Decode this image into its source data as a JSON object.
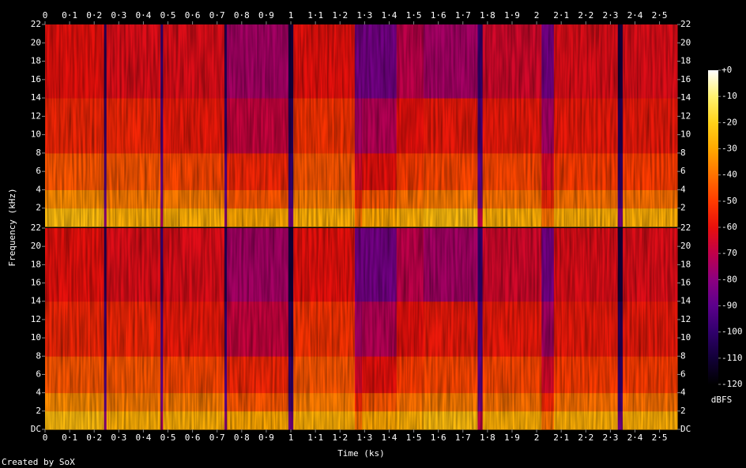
{
  "chart_data": {
    "type": "spectrogram",
    "x_label": "Time (ks)",
    "y_label": "Frequency (kHz)",
    "footer": "Created by SoX",
    "xlim": [
      0,
      2.572
    ],
    "xticks": [
      0,
      {
        "value": 0.1,
        "label": "0·1"
      },
      {
        "value": 0.2,
        "label": "0·2"
      },
      {
        "value": 0.3,
        "label": "0·3"
      },
      {
        "value": 0.4,
        "label": "0·4"
      },
      {
        "value": 0.5,
        "label": "0·5"
      },
      {
        "value": 0.6,
        "label": "0·6"
      },
      {
        "value": 0.7,
        "label": "0·7"
      },
      {
        "value": 0.8,
        "label": "0·8"
      },
      {
        "value": 0.9,
        "label": "0·9"
      },
      1,
      {
        "value": 1.1,
        "label": "1·1"
      },
      {
        "value": 1.2,
        "label": "1·2"
      },
      {
        "value": 1.3,
        "label": "1·3"
      },
      {
        "value": 1.4,
        "label": "1·4"
      },
      {
        "value": 1.5,
        "label": "1·5"
      },
      {
        "value": 1.6,
        "label": "1·6"
      },
      {
        "value": 1.7,
        "label": "1·7"
      },
      {
        "value": 1.8,
        "label": "1·8"
      },
      {
        "value": 1.9,
        "label": "1·9"
      },
      2,
      {
        "value": 2.1,
        "label": "2·1"
      },
      {
        "value": 2.2,
        "label": "2·2"
      },
      {
        "value": 2.3,
        "label": "2·3"
      },
      {
        "value": 2.4,
        "label": "2·4"
      },
      {
        "value": 2.5,
        "label": "2·5"
      }
    ],
    "time_bins": [
      0,
      0.24,
      0.25,
      0.47,
      0.48,
      0.73,
      0.74,
      0.99,
      1.01,
      1.26,
      1.29,
      1.43,
      1.54,
      1.76,
      1.78,
      2.02,
      2.07,
      2.33,
      2.35,
      2.572
    ],
    "freq_bins": [
      0,
      2,
      4,
      8,
      14,
      22
    ],
    "panels": [
      {
        "ylim": [
          0,
          22
        ],
        "yticks": [
          2,
          4,
          6,
          8,
          10,
          12,
          14,
          16,
          18,
          20,
          22
        ],
        "levels": [
          [
            -25,
            -35,
            -45,
            -55,
            -60
          ],
          [
            -80,
            -90,
            -95,
            -100,
            -105
          ],
          [
            -28,
            -38,
            -45,
            -55,
            -62
          ],
          [
            -75,
            -85,
            -90,
            -95,
            -100
          ],
          [
            -28,
            -38,
            -48,
            -58,
            -62
          ],
          [
            -80,
            -90,
            -95,
            -100,
            -105
          ],
          [
            -30,
            -45,
            -55,
            -68,
            -75
          ],
          [
            -85,
            -95,
            -100,
            -105,
            -110
          ],
          [
            -28,
            -38,
            -45,
            -52,
            -60
          ],
          [
            -40,
            -55,
            -65,
            -75,
            -85
          ],
          [
            -30,
            -45,
            -60,
            -72,
            -85
          ],
          [
            -28,
            -40,
            -50,
            -60,
            -70
          ],
          [
            -25,
            -38,
            -48,
            -58,
            -75
          ],
          [
            -70,
            -85,
            -90,
            -95,
            -100
          ],
          [
            -28,
            -40,
            -48,
            -58,
            -65
          ],
          [
            -40,
            -55,
            -65,
            -75,
            -85
          ],
          [
            -28,
            -40,
            -50,
            -58,
            -62
          ],
          [
            -85,
            -95,
            -100,
            -105,
            -110
          ],
          [
            -28,
            -40,
            -50,
            -58,
            -62
          ]
        ]
      },
      {
        "ylim": [
          0,
          22
        ],
        "yticks": [
          {
            "value": 0,
            "label": "DC"
          },
          2,
          4,
          6,
          8,
          10,
          12,
          14,
          16,
          18,
          20,
          22
        ],
        "levels": [
          [
            -25,
            -35,
            -45,
            -55,
            -60
          ],
          [
            -80,
            -90,
            -95,
            -100,
            -105
          ],
          [
            -28,
            -38,
            -45,
            -55,
            -62
          ],
          [
            -75,
            -85,
            -90,
            -95,
            -100
          ],
          [
            -28,
            -38,
            -48,
            -58,
            -62
          ],
          [
            -80,
            -90,
            -95,
            -100,
            -105
          ],
          [
            -30,
            -45,
            -55,
            -68,
            -75
          ],
          [
            -85,
            -95,
            -100,
            -105,
            -110
          ],
          [
            -28,
            -38,
            -45,
            -52,
            -60
          ],
          [
            -40,
            -55,
            -65,
            -75,
            -85
          ],
          [
            -30,
            -45,
            -60,
            -72,
            -85
          ],
          [
            -28,
            -40,
            -50,
            -60,
            -70
          ],
          [
            -25,
            -38,
            -48,
            -58,
            -75
          ],
          [
            -70,
            -85,
            -90,
            -95,
            -100
          ],
          [
            -28,
            -40,
            -48,
            -58,
            -65
          ],
          [
            -40,
            -55,
            -65,
            -75,
            -85
          ],
          [
            -28,
            -40,
            -50,
            -58,
            -62
          ],
          [
            -85,
            -95,
            -100,
            -105,
            -110
          ],
          [
            -28,
            -40,
            -50,
            -58,
            -62
          ]
        ]
      }
    ],
    "colorbar": {
      "label": "dBFS",
      "lim": [
        -120,
        0
      ],
      "ticks": [
        {
          "value": 0,
          "label": "+0"
        },
        -10,
        -20,
        -30,
        -40,
        -50,
        -60,
        -70,
        -80,
        -90,
        -100,
        -110,
        -120
      ],
      "colors": [
        "#ffffff",
        "#fff270",
        "#ffd21a",
        "#ffa800",
        "#ff7200",
        "#ff3c00",
        "#e8100c",
        "#c0004a",
        "#8c0080",
        "#5c008c",
        "#30006c",
        "#120038",
        "#000000"
      ]
    }
  }
}
